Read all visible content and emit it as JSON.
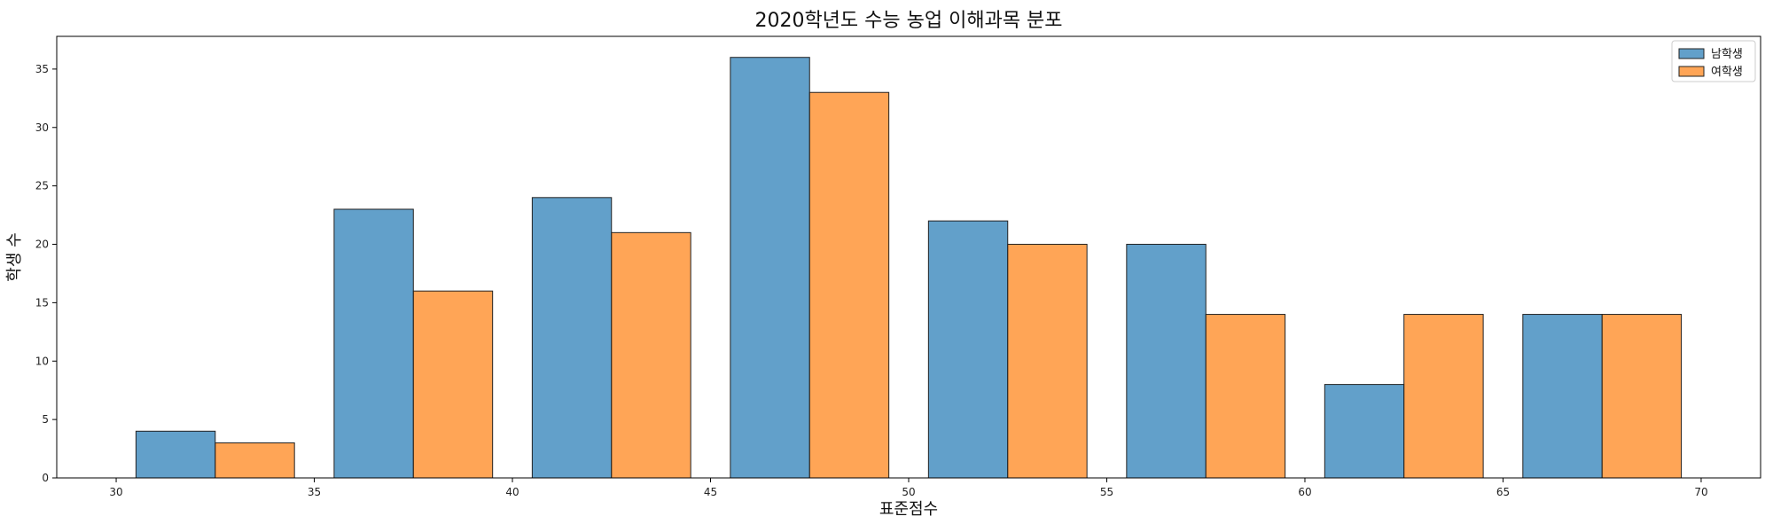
{
  "chart_data": {
    "type": "bar",
    "title": "2020학년도 수능 농업 이해과목 분포",
    "xlabel": "표준점수",
    "ylabel": "학생 수",
    "bin_starts": [
      30,
      35,
      40,
      45,
      50,
      55,
      60,
      65
    ],
    "bin_width": 5,
    "series": [
      {
        "name": "남학생",
        "color": "#1f77b4",
        "values": [
          4,
          23,
          24,
          36,
          22,
          20,
          8,
          14
        ]
      },
      {
        "name": "여학생",
        "color": "#ff7f0e",
        "values": [
          3,
          16,
          21,
          33,
          20,
          14,
          14,
          14
        ]
      }
    ],
    "xlim": [
      28.5,
      71.5
    ],
    "ylim": [
      0,
      37.8
    ],
    "xticks": [
      30,
      35,
      40,
      45,
      50,
      55,
      60,
      65,
      70
    ],
    "yticks": [
      0,
      5,
      10,
      15,
      20,
      25,
      30,
      35
    ],
    "grid": false,
    "legend_position": "top-right"
  }
}
